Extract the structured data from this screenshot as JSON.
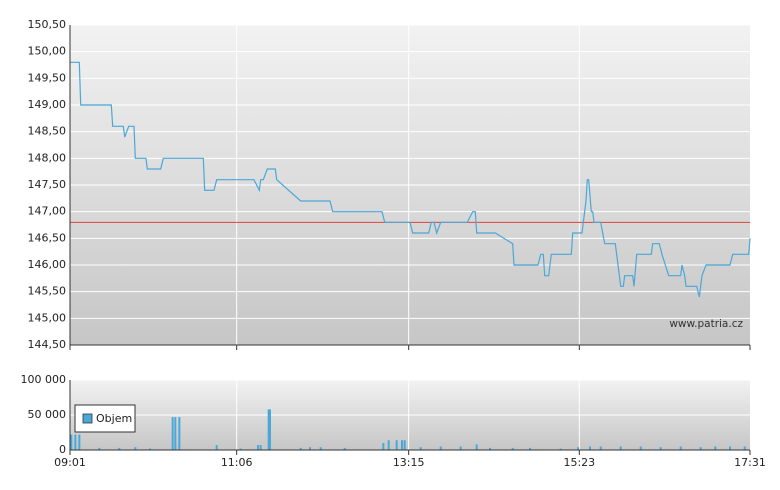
{
  "chart_data": [
    {
      "type": "line",
      "watermark": "www.patria.cz",
      "ylim": [
        144.5,
        150.5
      ],
      "yticks": [
        {
          "value": 144.5,
          "label": "144,50"
        },
        {
          "value": 145,
          "label": "145,00"
        },
        {
          "value": 145.5,
          "label": "145,50"
        },
        {
          "value": 146,
          "label": "146,00"
        },
        {
          "value": 146.5,
          "label": "146,50"
        },
        {
          "value": 147,
          "label": "147,00"
        },
        {
          "value": 147.5,
          "label": "147,50"
        },
        {
          "value": 148,
          "label": "148,00"
        },
        {
          "value": 148.5,
          "label": "148,50"
        },
        {
          "value": 149,
          "label": "149,00"
        },
        {
          "value": 149.5,
          "label": "149,50"
        },
        {
          "value": 150,
          "label": "150,00"
        },
        {
          "value": 150.5,
          "label": "150,50"
        }
      ],
      "grid": true,
      "reference_line": 146.8,
      "reference_color": "#d9453a",
      "series": [
        {
          "color": "#4aa8d8",
          "x": [
            "09:01",
            "09:08",
            "09:09",
            "09:32",
            "09:33",
            "09:41",
            "09:42",
            "09:45",
            "09:49",
            "09:50",
            "09:58",
            "09:59",
            "10:09",
            "10:11",
            "10:41",
            "10:42",
            "10:49",
            "10:51",
            "11:19",
            "11:23",
            "11:24",
            "11:26",
            "11:29",
            "11:35",
            "11:36",
            "11:54",
            "12:16",
            "12:18",
            "12:55",
            "12:57",
            "13:16",
            "13:18",
            "13:30",
            "13:32",
            "13:34",
            "13:36",
            "13:39",
            "13:59",
            "14:03",
            "14:05",
            "14:06",
            "14:20",
            "14:33",
            "14:34",
            "14:52",
            "14:54",
            "14:56",
            "14:57",
            "15:00",
            "15:02",
            "15:17",
            "15:18",
            "15:25",
            "15:28",
            "15:29",
            "15:30",
            "15:32",
            "15:33",
            "15:34",
            "15:39",
            "15:42",
            "15:50",
            "15:54",
            "15:56",
            "15:57",
            "16:03",
            "16:04",
            "16:06",
            "16:17",
            "16:18",
            "16:23",
            "16:25",
            "16:30",
            "16:39",
            "16:40",
            "16:42",
            "16:43",
            "16:51",
            "16:53",
            "16:55",
            "16:58",
            "17:16",
            "17:18",
            "17:30",
            "17:31"
          ],
          "values": [
            149.8,
            149.8,
            149.0,
            149.0,
            148.6,
            148.6,
            148.4,
            148.6,
            148.6,
            148.0,
            148.0,
            147.8,
            147.8,
            148.0,
            148.0,
            147.4,
            147.4,
            147.6,
            147.6,
            147.4,
            147.6,
            147.6,
            147.8,
            147.8,
            147.6,
            147.2,
            147.2,
            147.0,
            147.0,
            146.8,
            146.8,
            146.6,
            146.6,
            146.8,
            146.8,
            146.6,
            146.8,
            146.8,
            147.0,
            147.0,
            146.6,
            146.6,
            146.4,
            146.0,
            146.0,
            146.2,
            146.2,
            145.8,
            145.8,
            146.2,
            146.2,
            146.6,
            146.6,
            147.2,
            147.6,
            147.6,
            147.0,
            147.0,
            146.8,
            146.8,
            146.4,
            146.4,
            145.6,
            145.6,
            145.8,
            145.8,
            145.6,
            146.2,
            146.2,
            146.4,
            146.4,
            146.2,
            145.8,
            145.8,
            146.0,
            145.8,
            145.6,
            145.6,
            145.4,
            145.8,
            146.0,
            146.0,
            146.2,
            146.2,
            146.5
          ]
        }
      ]
    },
    {
      "type": "bar",
      "xlim": [
        "09:01",
        "17:31"
      ],
      "xticks": [
        "09:01",
        "11:06",
        "13:15",
        "15:23",
        "17:31"
      ],
      "ylim": [
        0,
        100000
      ],
      "yticks": [
        0,
        {
          "value": 50000,
          "label": "50 000"
        },
        {
          "value": 100000,
          "label": "100 000"
        }
      ],
      "grid": true,
      "series": [
        {
          "name": "Objem",
          "color": "#4aa8d8",
          "x": [
            "09:02",
            "09:05",
            "09:08",
            "09:23",
            "09:38",
            "09:50",
            "10:01",
            "10:18",
            "10:20",
            "10:23",
            "10:51",
            "11:09",
            "11:22",
            "11:24",
            "11:30",
            "11:31",
            "11:54",
            "12:01",
            "12:09",
            "12:27",
            "12:56",
            "13:00",
            "13:06",
            "13:10",
            "13:12",
            "13:24",
            "13:39",
            "13:54",
            "14:06",
            "14:16",
            "14:33",
            "14:46",
            "15:09",
            "15:22",
            "15:31",
            "15:39",
            "15:54",
            "16:09",
            "16:24",
            "16:39",
            "16:54",
            "17:05",
            "17:16",
            "17:27"
          ],
          "values": [
            22000,
            22000,
            22000,
            3000,
            3000,
            4000,
            2000,
            47000,
            47000,
            47000,
            7000,
            2000,
            7000,
            7000,
            58000,
            58000,
            3000,
            4000,
            4000,
            3000,
            10000,
            14000,
            14000,
            14000,
            14000,
            4000,
            5000,
            5000,
            8000,
            3000,
            3000,
            3000,
            2000,
            4000,
            5000,
            5000,
            5000,
            5000,
            4000,
            5000,
            4000,
            5000,
            5000,
            5000
          ]
        }
      ]
    }
  ]
}
